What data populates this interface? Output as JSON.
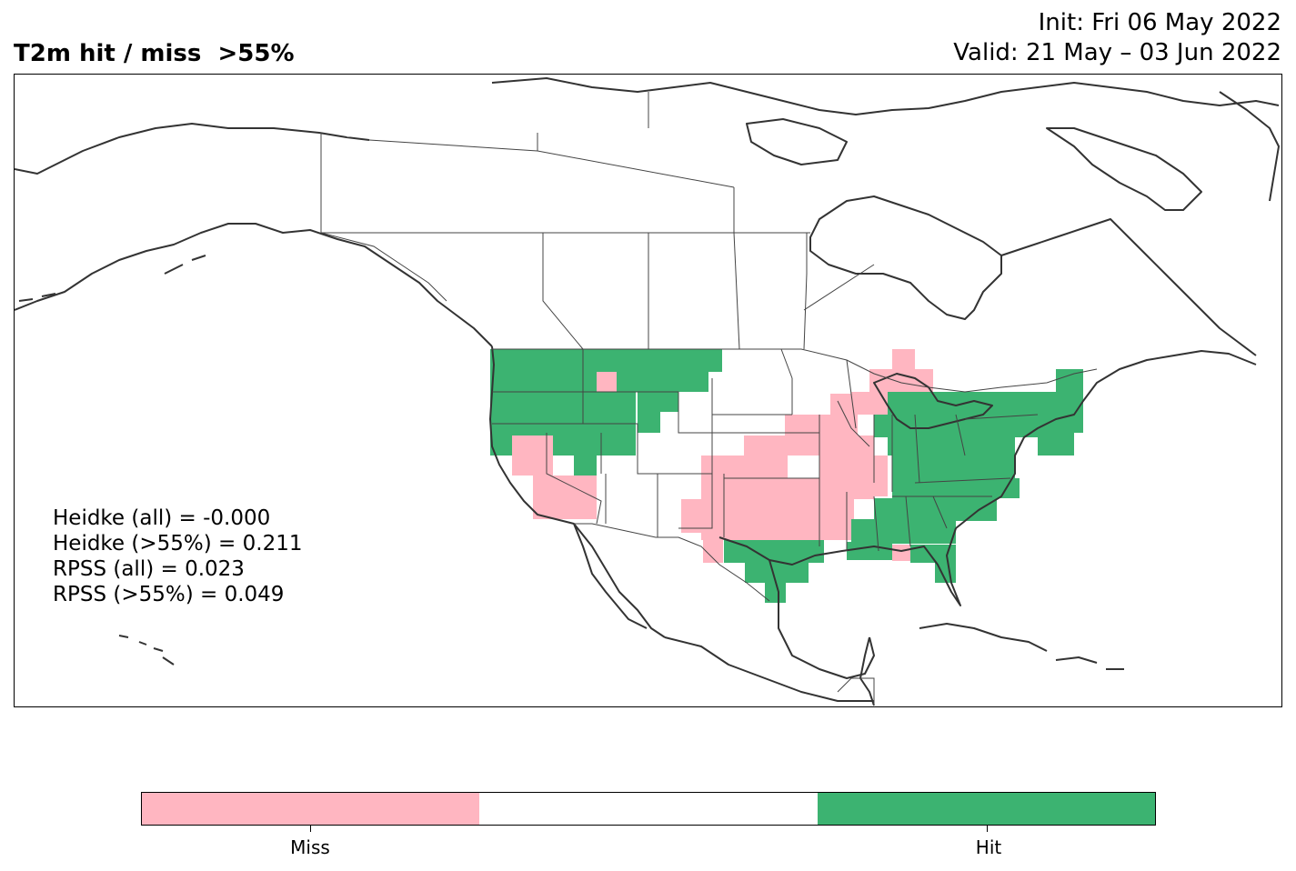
{
  "header": {
    "title": "T2m hit / miss  >55%",
    "init": "Init: Fri 06 May 2022",
    "valid": "Valid: 21 May – 03 Jun 2022"
  },
  "stats": [
    "Heidke (all) = -0.000",
    "Heidke (>55%) = 0.211",
    "RPSS (all) = 0.023",
    "RPSS (>55%) = 0.049"
  ],
  "colorbar": {
    "segments": [
      "#ffb6c1",
      "#ffffff",
      "#3cb371"
    ],
    "tick_labels": [
      "Miss",
      "Hit"
    ]
  },
  "map": {
    "miss_color": "#ffb6c1",
    "hit_color": "#3cb371",
    "coastline_color": "#333333"
  }
}
